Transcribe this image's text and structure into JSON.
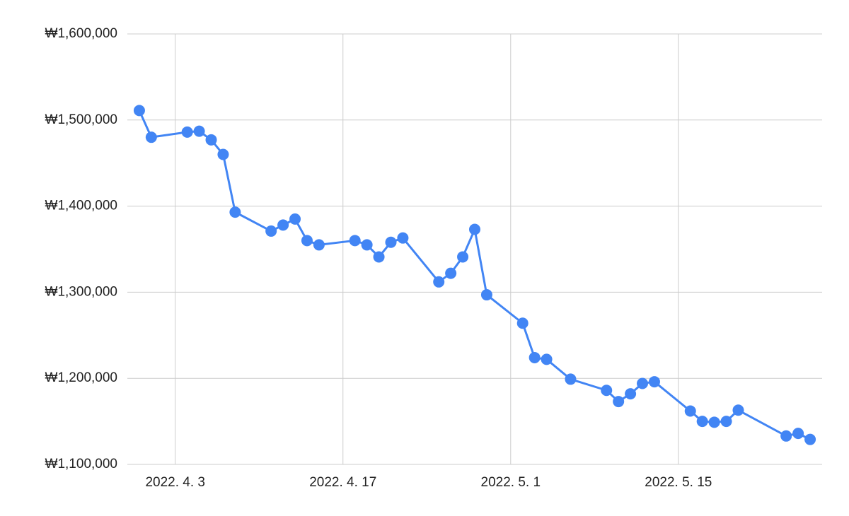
{
  "chart_data": {
    "type": "line",
    "x": [
      "2022-03-31",
      "2022-04-01",
      "2022-04-04",
      "2022-04-05",
      "2022-04-06",
      "2022-04-07",
      "2022-04-08",
      "2022-04-11",
      "2022-04-12",
      "2022-04-13",
      "2022-04-14",
      "2022-04-15",
      "2022-04-18",
      "2022-04-19",
      "2022-04-20",
      "2022-04-21",
      "2022-04-22",
      "2022-04-25",
      "2022-04-26",
      "2022-04-27",
      "2022-04-28",
      "2022-04-29",
      "2022-05-02",
      "2022-05-03",
      "2022-05-04",
      "2022-05-06",
      "2022-05-09",
      "2022-05-10",
      "2022-05-11",
      "2022-05-12",
      "2022-05-13",
      "2022-05-16",
      "2022-05-17",
      "2022-05-18",
      "2022-05-19",
      "2022-05-20",
      "2022-05-24",
      "2022-05-25",
      "2022-05-26"
    ],
    "series": [
      {
        "color": "#4285f4",
        "values": [
          1511000,
          1480000,
          1486000,
          1487000,
          1477000,
          1460000,
          1393000,
          1371000,
          1378000,
          1385000,
          1360000,
          1355000,
          1360000,
          1355000,
          1341000,
          1358000,
          1363000,
          1312000,
          1322000,
          1341000,
          1373000,
          1297000,
          1264000,
          1224000,
          1222000,
          1199000,
          1186000,
          1173000,
          1182000,
          1194000,
          1196000,
          1162000,
          1150000,
          1149000,
          1150000,
          1163000,
          1133000,
          1136000,
          1129000
        ]
      }
    ],
    "xlim": [
      "2022-03-30",
      "2022-05-27"
    ],
    "xticks": [
      {
        "value": "2022-04-03",
        "label": "2022. 4. 3"
      },
      {
        "value": "2022-04-17",
        "label": "2022. 4. 17"
      },
      {
        "value": "2022-05-01",
        "label": "2022. 5. 1"
      },
      {
        "value": "2022-05-15",
        "label": "2022. 5. 15"
      }
    ],
    "ylim": [
      1100000,
      1600000
    ],
    "yticks": [
      {
        "value": 1100000,
        "label": "₩1,100,000"
      },
      {
        "value": 1200000,
        "label": "₩1,200,000"
      },
      {
        "value": 1300000,
        "label": "₩1,300,000"
      },
      {
        "value": 1400000,
        "label": "₩1,400,000"
      },
      {
        "value": 1500000,
        "label": "₩1,500,000"
      },
      {
        "value": 1600000,
        "label": "₩1,600,000"
      }
    ],
    "grid": true
  }
}
